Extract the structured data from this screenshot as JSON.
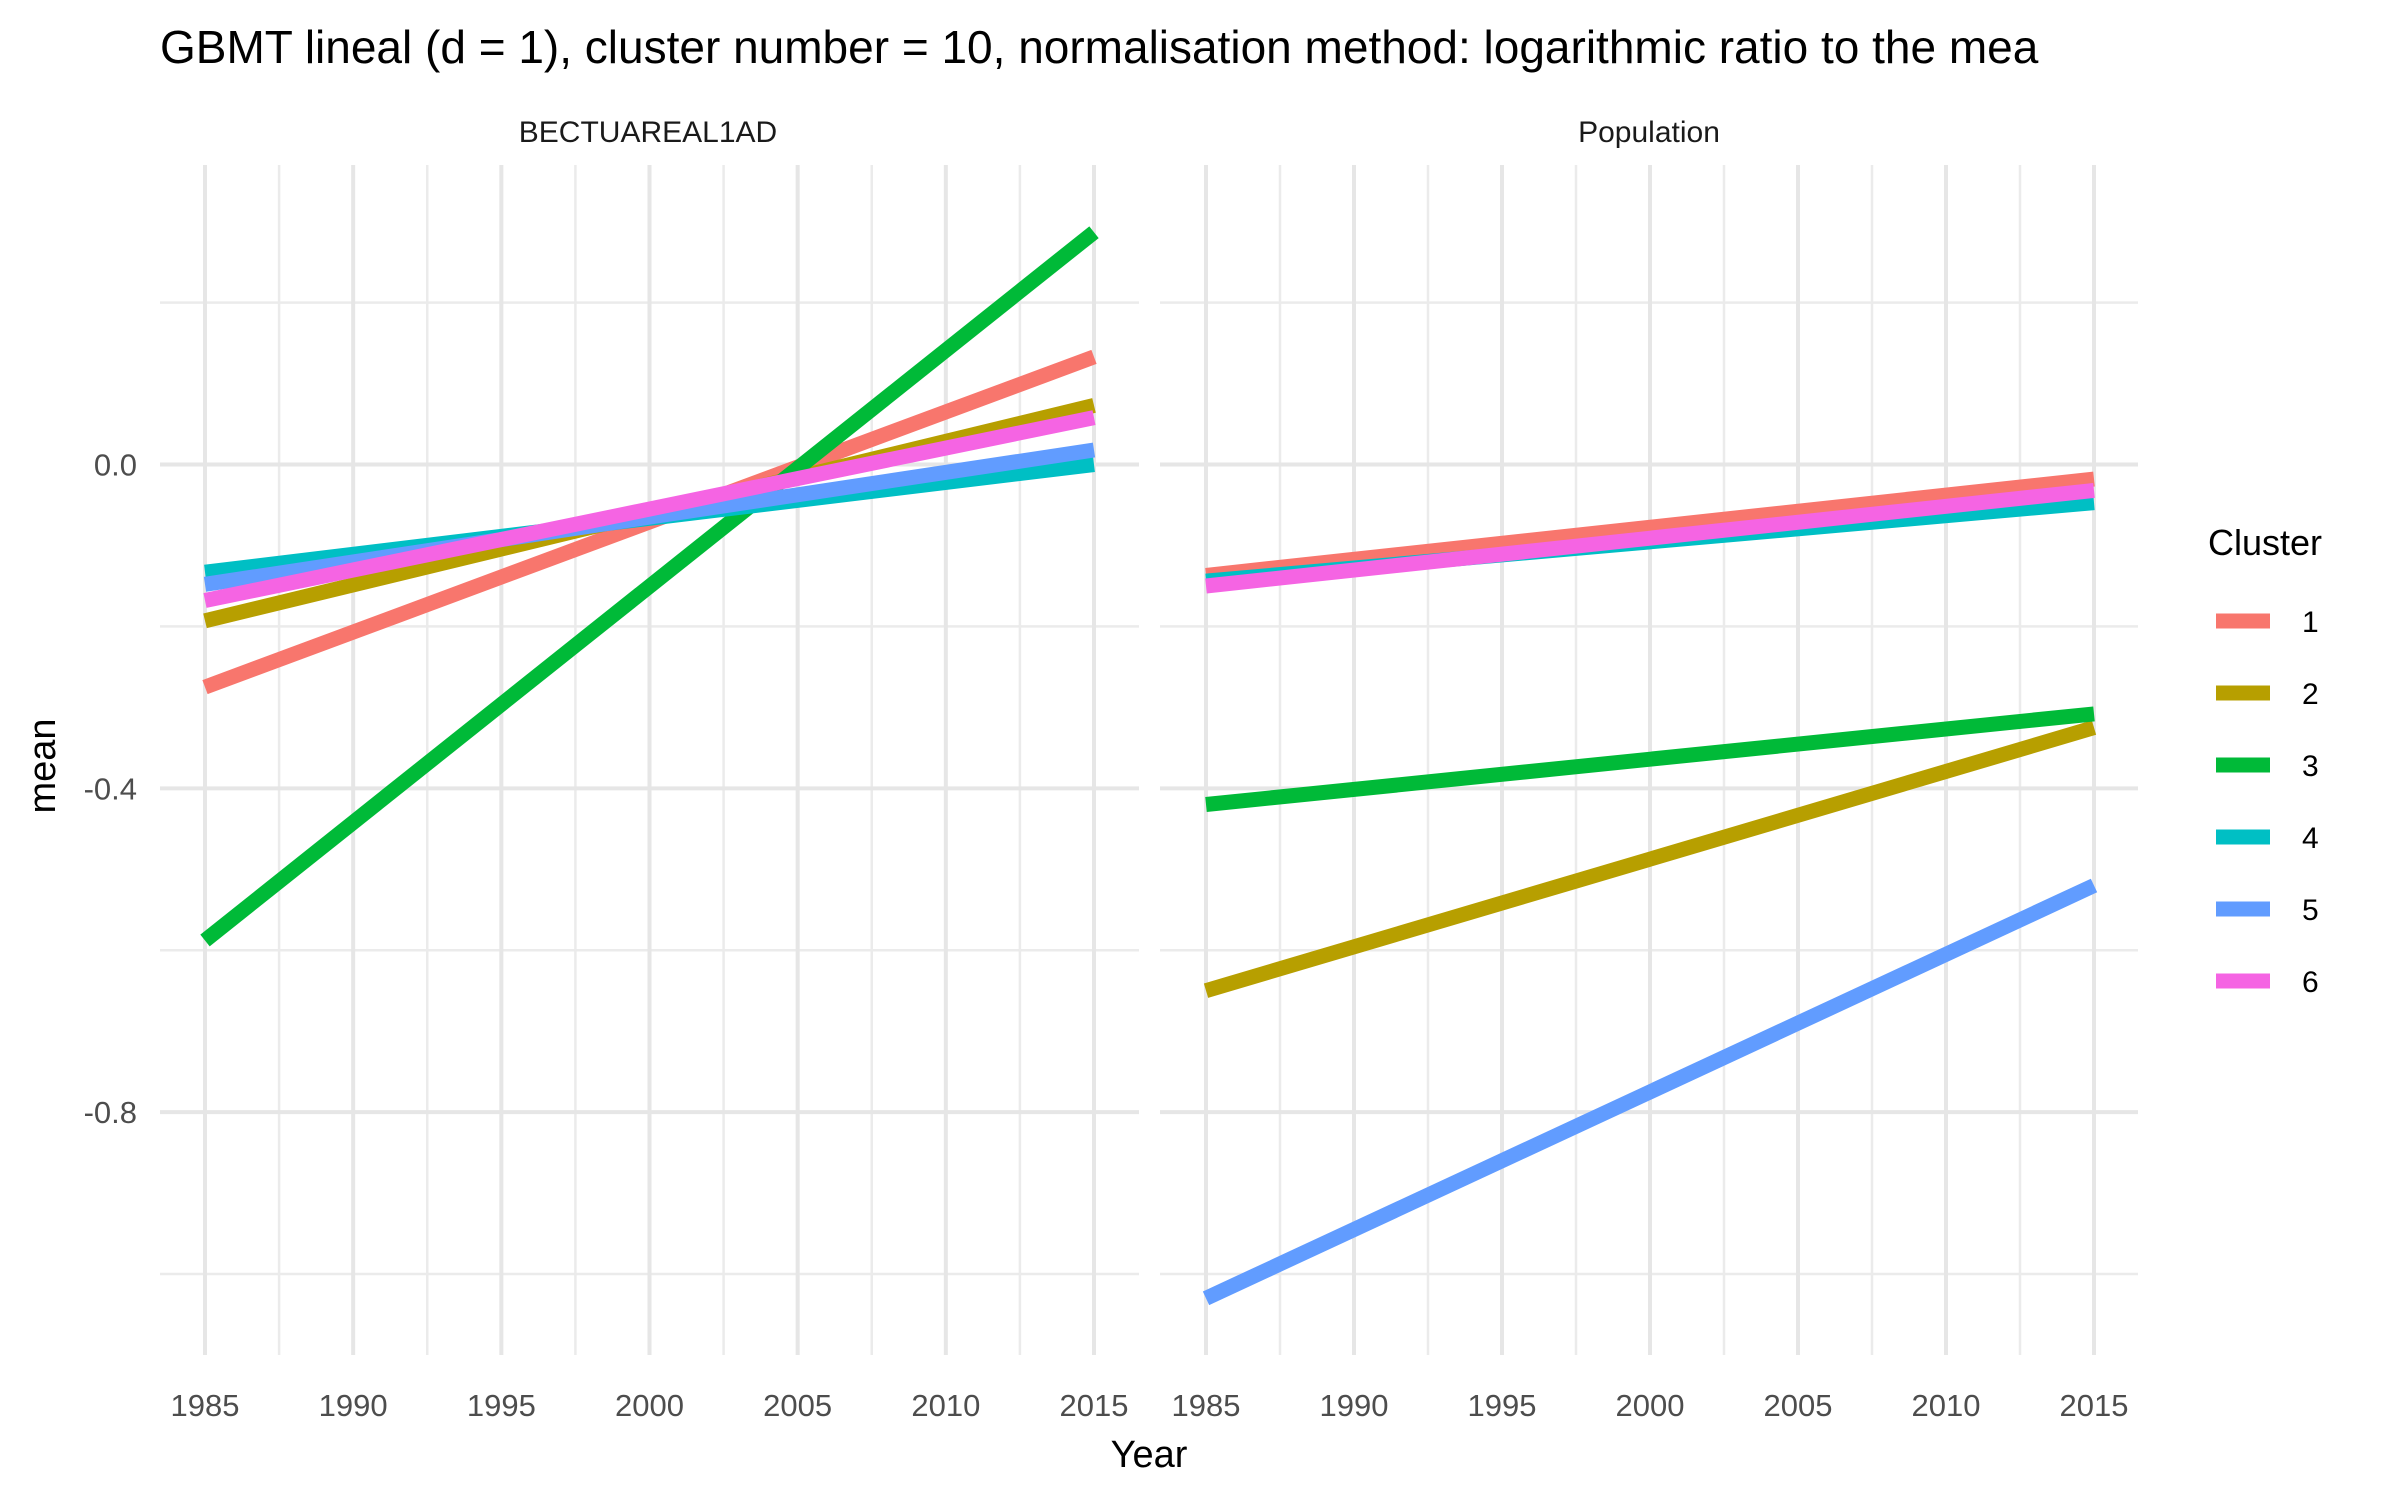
{
  "chart_data": {
    "type": "line",
    "title": "GBMT lineal (d = 1), cluster number = 10, normalisation method: logarithmic ratio to the mea",
    "xlabel": "Year",
    "ylabel": "mean",
    "xlim": [
      1985,
      2015
    ],
    "ylim": [
      -1.1,
      0.37
    ],
    "x_ticks": [
      "1985",
      "1990",
      "1995",
      "2000",
      "2005",
      "2010",
      "2015"
    ],
    "y_ticks": [
      "0.0",
      "-0.4",
      "-0.8"
    ],
    "y_tick_values": [
      0.0,
      -0.4,
      -0.8
    ],
    "grid": true,
    "legend": {
      "title": "Cluster",
      "position": "right",
      "entries": [
        "1",
        "2",
        "3",
        "4",
        "5",
        "6"
      ]
    },
    "colors": [
      "#F8766D",
      "#B79F00",
      "#00BA38",
      "#00BFC4",
      "#619CFF",
      "#F564E3"
    ],
    "panels": [
      {
        "name": "BECTUAREAL1AD",
        "series": [
          {
            "name": "1",
            "x": [
              1985,
              2015
            ],
            "y": [
              -0.275,
              0.133
            ]
          },
          {
            "name": "2",
            "x": [
              1985,
              2015
            ],
            "y": [
              -0.193,
              0.073
            ]
          },
          {
            "name": "3",
            "x": [
              1985,
              2015
            ],
            "y": [
              -0.588,
              0.287
            ]
          },
          {
            "name": "4",
            "x": [
              1985,
              2015
            ],
            "y": [
              -0.133,
              0.0
            ]
          },
          {
            "name": "5",
            "x": [
              1985,
              2015
            ],
            "y": [
              -0.148,
              0.018
            ]
          },
          {
            "name": "6",
            "x": [
              1985,
              2015
            ],
            "y": [
              -0.168,
              0.058
            ]
          }
        ]
      },
      {
        "name": "Population",
        "series": [
          {
            "name": "1",
            "x": [
              1985,
              2015
            ],
            "y": [
              -0.137,
              -0.018
            ]
          },
          {
            "name": "2",
            "x": [
              1985,
              2015
            ],
            "y": [
              -0.65,
              -0.325
            ]
          },
          {
            "name": "3",
            "x": [
              1985,
              2015
            ],
            "y": [
              -0.42,
              -0.308
            ]
          },
          {
            "name": "4",
            "x": [
              1985,
              2015
            ],
            "y": [
              -0.144,
              -0.047
            ]
          },
          {
            "name": "5",
            "x": [
              1985,
              2015
            ],
            "y": [
              -1.03,
              -0.52
            ]
          },
          {
            "name": "6",
            "x": [
              1985,
              2015
            ],
            "y": [
              -0.15,
              -0.032
            ]
          }
        ]
      }
    ]
  }
}
